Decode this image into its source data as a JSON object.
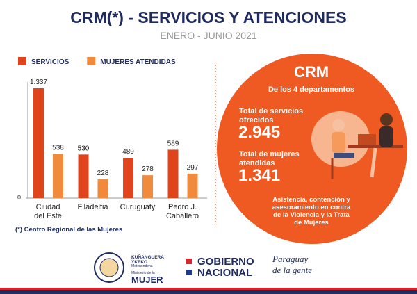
{
  "chart_data": {
    "type": "bar",
    "title": "CRM(*) - SERVICIOS Y ATENCIONES",
    "subtitle": "ENERO - JUNIO 2021",
    "categories": [
      "Ciudad\ndel Este",
      "Filadelfia",
      "Curuguaty",
      "Pedro J.\nCaballero"
    ],
    "series": [
      {
        "name": "SERVICIOS",
        "color": "#e0441d",
        "values": [
          1337,
          530,
          489,
          589
        ],
        "value_labels": [
          "1.337",
          "530",
          "489",
          "589"
        ]
      },
      {
        "name": "MUJERES ATENDIDAS",
        "color": "#f08a3c",
        "values": [
          538,
          228,
          278,
          297
        ],
        "value_labels": [
          "538",
          "228",
          "278",
          "297"
        ]
      }
    ],
    "ylim": [
      0,
      1337
    ],
    "yticks": [
      0
    ],
    "legend": "top-left",
    "footnote": "(*) Centro Regional de las Mujeres"
  },
  "panel": {
    "title": "CRM",
    "subtitle": "De los 4 departamentos",
    "stats": [
      {
        "label": "Total de servicios\nofrecidos",
        "value": "2.945"
      },
      {
        "label": "Total de mujeres\natendidas",
        "value": "1.341"
      }
    ],
    "description": "Asistencia, contención y\nasesoramiento en contra\nde la Violencia y la Trata\nde Mujeres"
  },
  "footer": {
    "ministry_top": "KUÑANGUERA\nYKEKO",
    "ministry_guarani": "Motenondeha",
    "ministry_small": "Ministerio de la",
    "ministry_name": "MUJER",
    "government": "GOBIERNO\nNACIONAL",
    "slogan": "Paraguay\nde la gente"
  }
}
